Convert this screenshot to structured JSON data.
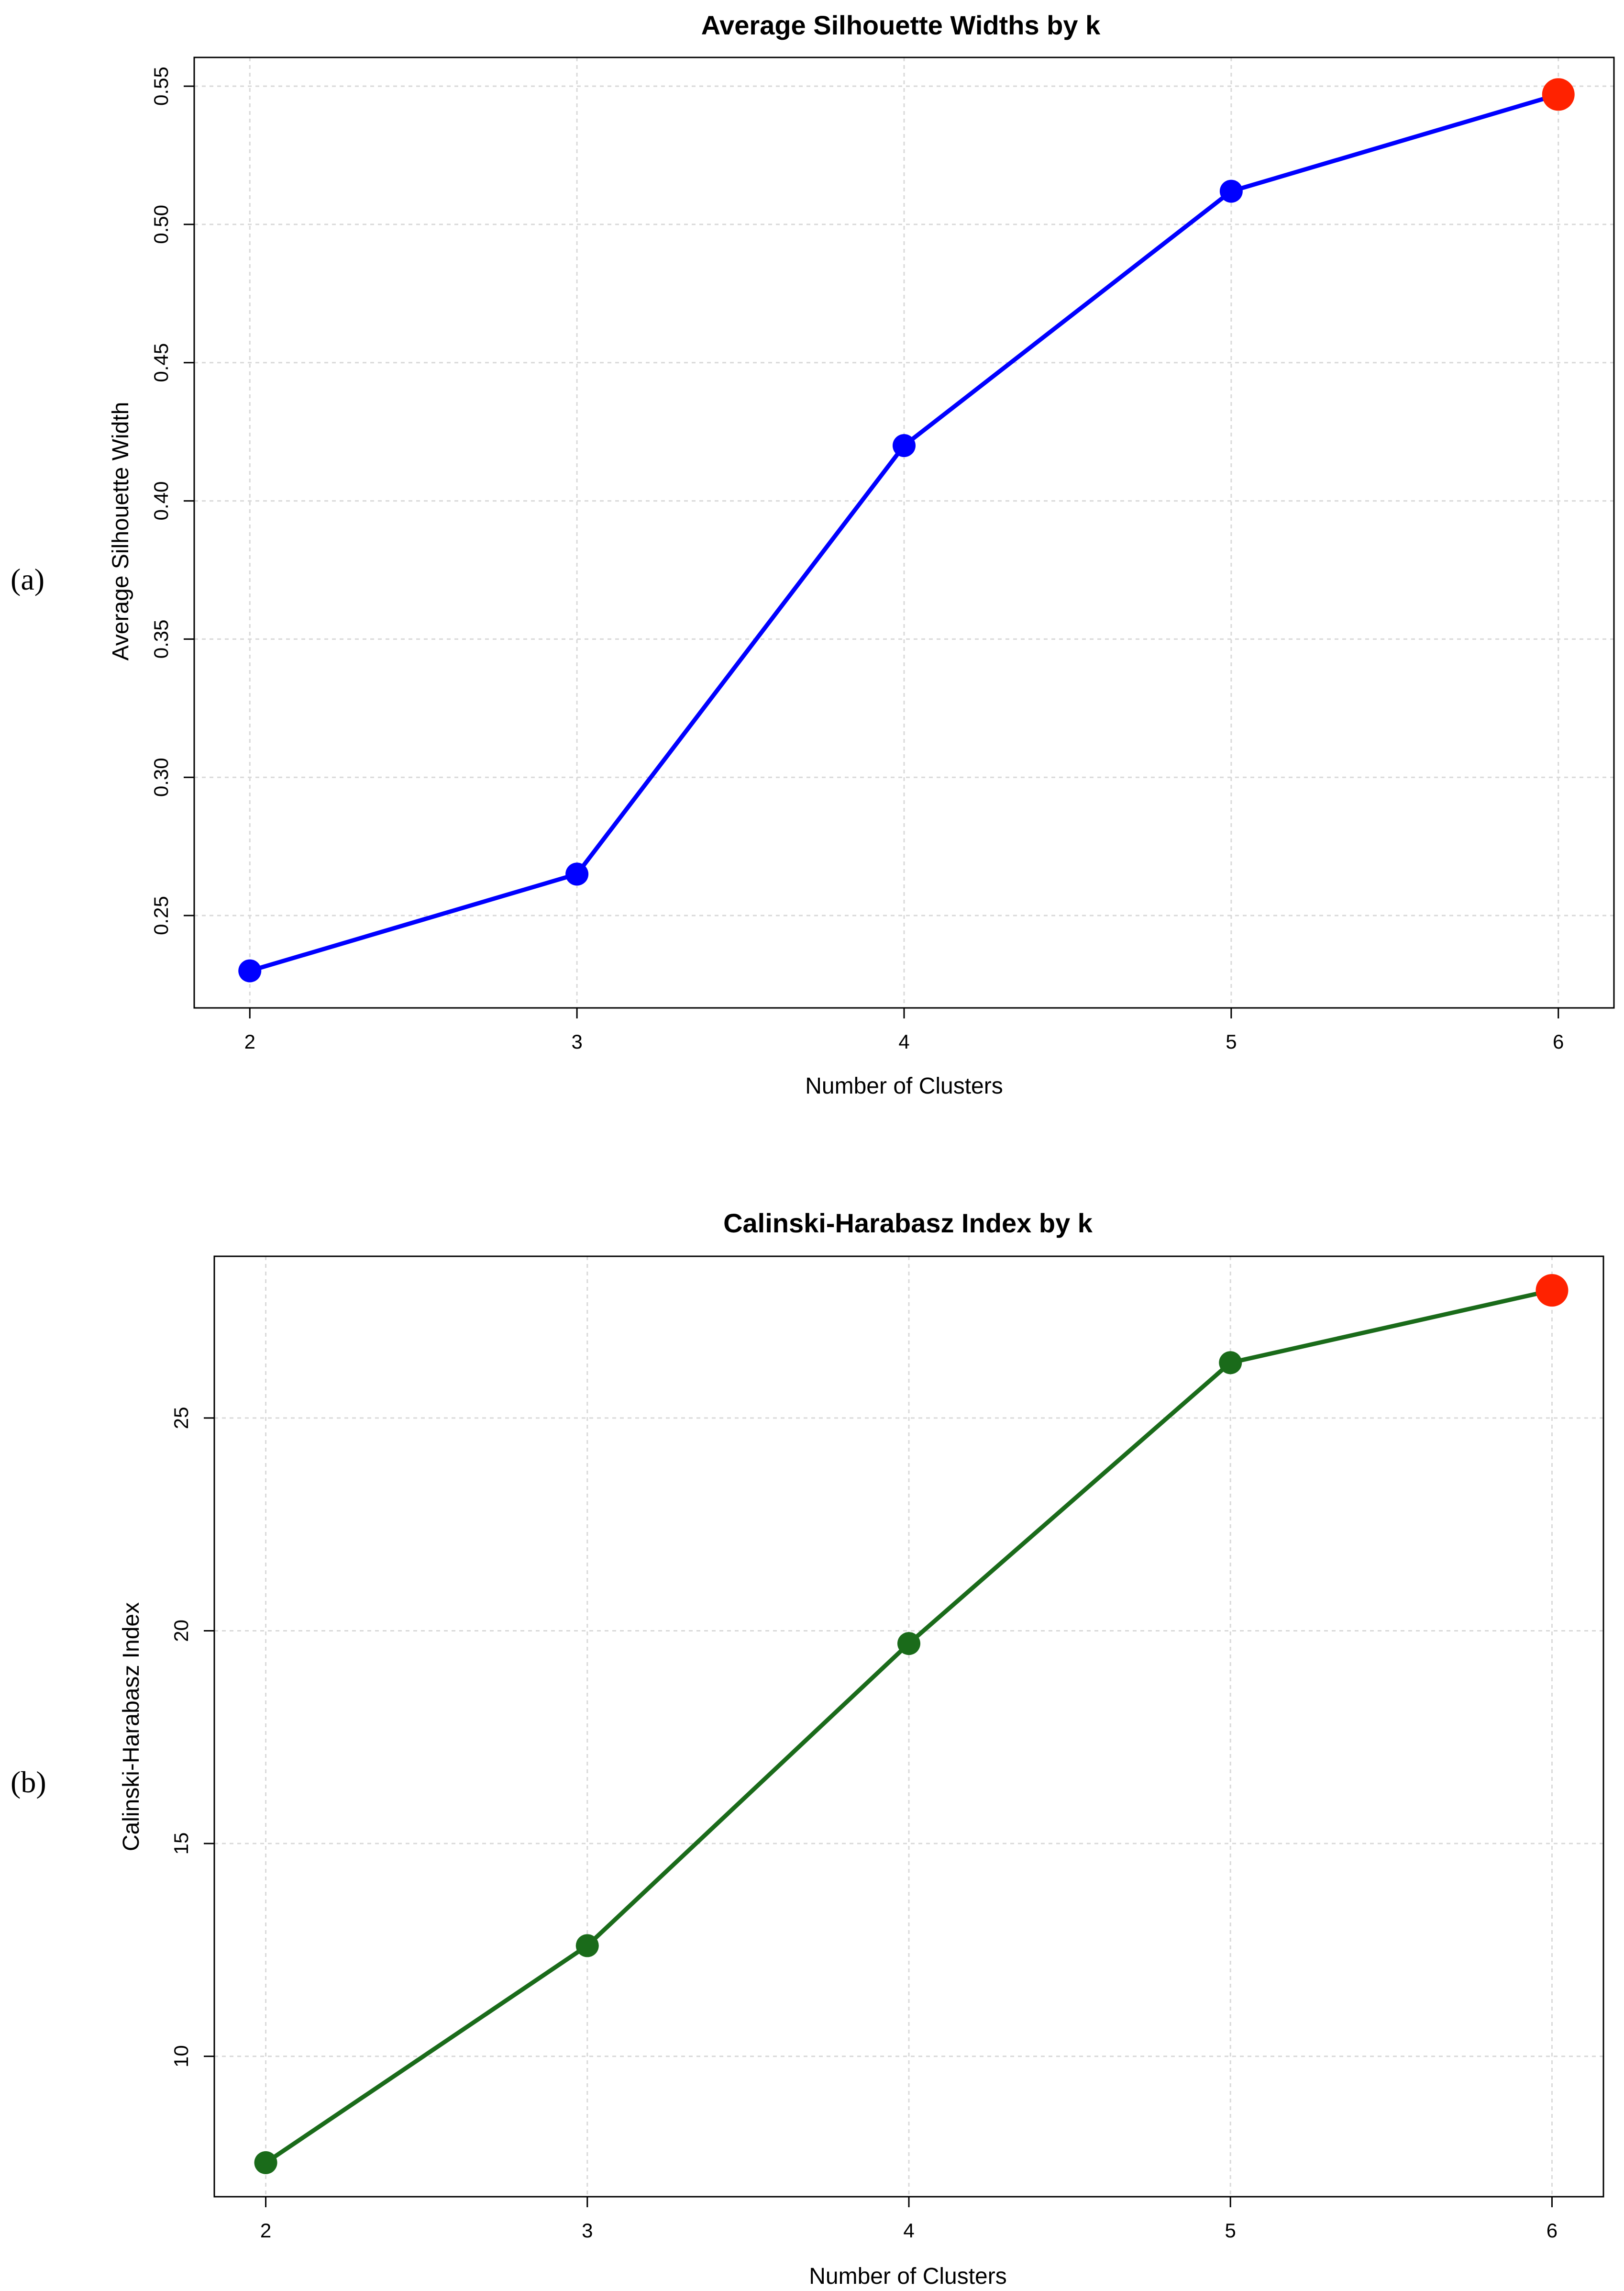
{
  "panels": [
    {
      "label": "(a)"
    },
    {
      "label": "(b)"
    }
  ],
  "chart_data": [
    {
      "type": "line",
      "title": "Average Silhouette Widths by k",
      "xlabel": "Number of Clusters",
      "ylabel": "Average Silhouette Width",
      "x": [
        2,
        3,
        4,
        5,
        6
      ],
      "series": [
        {
          "values": [
            0.23,
            0.265,
            0.42,
            0.512,
            0.547
          ],
          "color": "#0000ff"
        }
      ],
      "highlight": {
        "x": 6,
        "y": 0.547,
        "color": "#ff2200"
      },
      "xticks": [
        2,
        3,
        4,
        5,
        6
      ],
      "yticks": [
        0.25,
        0.3,
        0.35,
        0.4,
        0.45,
        0.5,
        0.55
      ],
      "ytick_labels": [
        "0.25",
        "0.30",
        "0.35",
        "0.40",
        "0.45",
        "0.50",
        "0.55"
      ],
      "xlim": [
        1.83,
        6.17
      ],
      "ylim": [
        0.2166,
        0.5604
      ],
      "grid": true
    },
    {
      "type": "line",
      "title": "Calinski-Harabasz Index by k",
      "xlabel": "Number of Clusters",
      "ylabel": "Calinski-Harabasz Index",
      "x": [
        2,
        3,
        4,
        5,
        6
      ],
      "series": [
        {
          "values": [
            7.5,
            12.6,
            19.7,
            26.3,
            28.0
          ],
          "color": "#1a6b1a"
        }
      ],
      "highlight": {
        "x": 6,
        "y": 28.0,
        "color": "#ff2200"
      },
      "xticks": [
        2,
        3,
        4,
        5,
        6
      ],
      "yticks": [
        10,
        15,
        20,
        25
      ],
      "ytick_labels": [
        "10",
        "15",
        "20",
        "25"
      ],
      "xlim": [
        1.84,
        6.16
      ],
      "ylim": [
        6.7,
        28.8
      ],
      "grid": true
    }
  ]
}
